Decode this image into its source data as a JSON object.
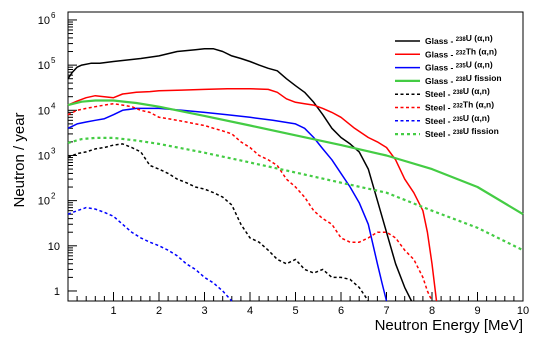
{
  "chart_data": {
    "type": "line",
    "title": "",
    "xlabel": "Neutron Energy [MeV]",
    "ylabel": "Neutron / year",
    "xlim": [
      0,
      10
    ],
    "ylim": [
      0.6,
      1500000
    ],
    "yscale": "log",
    "grid": false,
    "legend_position": "top-right",
    "x_ticks": [
      {
        "value": 1,
        "label": "1"
      },
      {
        "value": 2,
        "label": "2"
      },
      {
        "value": 3,
        "label": "3"
      },
      {
        "value": 4,
        "label": "4"
      },
      {
        "value": 5,
        "label": "5"
      },
      {
        "value": 6,
        "label": "6"
      },
      {
        "value": 7,
        "label": "7"
      },
      {
        "value": 8,
        "label": "8"
      },
      {
        "value": 9,
        "label": "9"
      },
      {
        "value": 10,
        "label": "10"
      }
    ],
    "y_ticks": [
      {
        "value": 1,
        "base": "1",
        "exp": ""
      },
      {
        "value": 10,
        "base": "10",
        "exp": ""
      },
      {
        "value": 100,
        "base": "10",
        "exp": "2"
      },
      {
        "value": 1000,
        "base": "10",
        "exp": "3"
      },
      {
        "value": 10000,
        "base": "10",
        "exp": "4"
      },
      {
        "value": 100000,
        "base": "10",
        "exp": "5"
      },
      {
        "value": 1000000,
        "base": "10",
        "exp": "6"
      }
    ],
    "series": [
      {
        "name": "Glass - 238U (α,n)",
        "material": "Glass",
        "isotope": "238",
        "element": "U",
        "reaction": "(α,n)",
        "color": "#000000",
        "dash": "solid",
        "x": [
          0.0,
          0.1,
          0.2,
          0.3,
          0.5,
          0.7,
          1.0,
          1.3,
          1.6,
          2.0,
          2.4,
          2.8,
          3.0,
          3.2,
          3.4,
          3.6,
          3.8,
          4.0,
          4.2,
          4.4,
          4.6,
          4.8,
          5.0,
          5.2,
          5.4,
          5.6,
          5.8,
          6.0,
          6.2,
          6.4,
          6.6,
          6.8,
          7.0,
          7.2,
          7.4,
          7.55
        ],
        "y": [
          50000,
          70000,
          90000,
          100000,
          110000,
          110000,
          120000,
          130000,
          140000,
          160000,
          200000,
          220000,
          230000,
          230000,
          200000,
          160000,
          140000,
          120000,
          100000,
          85000,
          75000,
          50000,
          35000,
          25000,
          15000,
          8000,
          4000,
          2500,
          1800,
          1200,
          500,
          100,
          20,
          4,
          1.2,
          0.6
        ]
      },
      {
        "name": "Glass - 232Th (α,n)",
        "material": "Glass",
        "isotope": "232",
        "element": "Th",
        "reaction": "(α,n)",
        "color": "#ff0000",
        "dash": "solid",
        "x": [
          0.0,
          0.2,
          0.4,
          0.6,
          0.8,
          1.0,
          1.2,
          1.5,
          1.8,
          2.0,
          2.5,
          3.0,
          3.5,
          4.0,
          4.4,
          4.6,
          4.8,
          5.0,
          5.2,
          5.4,
          5.6,
          5.8,
          6.0,
          6.3,
          6.6,
          6.8,
          7.0,
          7.2,
          7.4,
          7.6,
          7.8,
          7.9,
          8.0,
          8.1
        ],
        "y": [
          13000,
          16000,
          19000,
          21000,
          20000,
          19000,
          23000,
          25000,
          26000,
          27000,
          28000,
          29000,
          30000,
          30000,
          29000,
          25000,
          18000,
          15000,
          14000,
          13000,
          11000,
          9000,
          7000,
          4000,
          2500,
          2000,
          1500,
          800,
          300,
          150,
          60,
          20,
          4,
          0.6
        ]
      },
      {
        "name": "Glass - 235U (α,n)",
        "material": "Glass",
        "isotope": "235",
        "element": "U",
        "reaction": "(α,n)",
        "color": "#0000ff",
        "dash": "solid",
        "x": [
          0.0,
          0.2,
          0.4,
          0.6,
          0.8,
          1.0,
          1.2,
          1.5,
          2.0,
          2.5,
          3.0,
          3.5,
          4.0,
          4.5,
          5.0,
          5.2,
          5.4,
          5.6,
          5.8,
          6.0,
          6.2,
          6.4,
          6.6,
          6.8,
          6.9,
          7.0
        ],
        "y": [
          4000,
          5000,
          5500,
          6000,
          6500,
          8000,
          10000,
          11000,
          11000,
          10000,
          9000,
          8000,
          7000,
          6000,
          5000,
          4000,
          2500,
          1400,
          800,
          400,
          200,
          90,
          30,
          4,
          1.5,
          0.6
        ]
      },
      {
        "name": "Glass - 238U fission",
        "material": "Glass",
        "isotope": "238",
        "element": "U",
        "reaction": "fission",
        "color": "#44cc44",
        "dash": "solid",
        "x": [
          0.0,
          0.3,
          0.6,
          1.0,
          1.5,
          2.0,
          3.0,
          4.0,
          5.0,
          6.0,
          7.0,
          8.0,
          9.0,
          10.0
        ],
        "y": [
          13000,
          15500,
          16500,
          16500,
          14500,
          12000,
          7500,
          4600,
          2800,
          1700,
          1000,
          500,
          200,
          50
        ]
      },
      {
        "name": "Steel - 238U (α,n)",
        "material": "Steel",
        "isotope": "238",
        "element": "U",
        "reaction": "(α,n)",
        "color": "#000000",
        "dash": "dotted",
        "x": [
          0.0,
          0.2,
          0.4,
          0.6,
          0.8,
          1.0,
          1.2,
          1.4,
          1.6,
          1.8,
          2.0,
          2.2,
          2.4,
          2.6,
          2.8,
          3.0,
          3.2,
          3.4,
          3.6,
          3.8,
          4.0,
          4.2,
          4.4,
          4.6,
          4.8,
          5.0,
          5.2,
          5.4,
          5.6,
          5.8,
          6.0,
          6.2,
          6.4,
          6.6
        ],
        "y": [
          900,
          1100,
          1200,
          1400,
          1500,
          1700,
          1800,
          1500,
          1200,
          600,
          500,
          400,
          300,
          250,
          200,
          180,
          150,
          120,
          80,
          30,
          15,
          12,
          8,
          5,
          4,
          5,
          3,
          2.5,
          3,
          2,
          2,
          1.8,
          1.2,
          0.6
        ]
      },
      {
        "name": "Steel - 232Th (α,n)",
        "material": "Steel",
        "isotope": "232",
        "element": "Th",
        "reaction": "(α,n)",
        "color": "#ff0000",
        "dash": "dotted",
        "x": [
          0.0,
          0.2,
          0.4,
          0.6,
          0.8,
          1.0,
          1.2,
          1.4,
          1.6,
          1.8,
          2.0,
          2.2,
          2.4,
          2.6,
          2.8,
          3.0,
          3.2,
          3.4,
          3.6,
          3.8,
          4.0,
          4.2,
          4.4,
          4.6,
          4.8,
          5.0,
          5.2,
          5.4,
          5.6,
          5.8,
          6.0,
          6.2,
          6.4,
          6.6,
          6.8,
          7.0,
          7.2,
          7.4,
          7.6,
          7.8,
          7.9,
          8.0
        ],
        "y": [
          8000,
          10000,
          11000,
          12000,
          13000,
          14000,
          13000,
          12000,
          10000,
          9000,
          7000,
          6500,
          6000,
          5500,
          5000,
          4600,
          4000,
          3500,
          3000,
          2000,
          1500,
          1000,
          800,
          600,
          300,
          200,
          120,
          60,
          40,
          30,
          15,
          12,
          12,
          15,
          20,
          20,
          15,
          8,
          5,
          2,
          1,
          0.6
        ]
      },
      {
        "name": "Steel - 235U (α,n)",
        "material": "Steel",
        "isotope": "235",
        "element": "U",
        "reaction": "(α,n)",
        "color": "#0000ff",
        "dash": "dotted",
        "x": [
          0.0,
          0.2,
          0.4,
          0.6,
          0.8,
          1.0,
          1.2,
          1.4,
          1.6,
          1.8,
          2.0,
          2.2,
          2.4,
          2.6,
          2.8,
          3.0,
          3.2,
          3.4,
          3.6
        ],
        "y": [
          50,
          60,
          70,
          65,
          55,
          45,
          30,
          20,
          15,
          12,
          10,
          8,
          6,
          4,
          3,
          2,
          1.5,
          1,
          0.6
        ]
      },
      {
        "name": "Steel - 238U fission",
        "material": "Steel",
        "isotope": "238",
        "element": "U",
        "reaction": "fission",
        "color": "#44cc44",
        "dash": "dotted",
        "x": [
          0.0,
          0.3,
          0.6,
          1.0,
          1.5,
          2.0,
          3.0,
          4.0,
          5.0,
          6.0,
          7.0,
          8.0,
          9.0,
          10.0
        ],
        "y": [
          1900,
          2300,
          2450,
          2450,
          2150,
          1800,
          1150,
          700,
          420,
          250,
          150,
          60,
          25,
          8
        ]
      }
    ]
  }
}
